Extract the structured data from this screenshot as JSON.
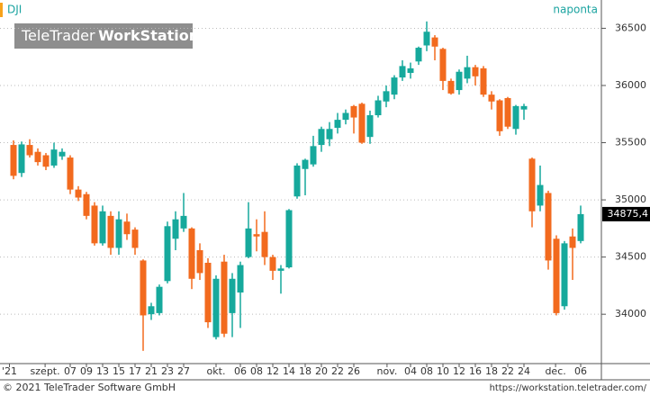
{
  "chart_data": {
    "type": "candlestick",
    "title": "DJI",
    "period": "naponta",
    "watermark": [
      "TeleTrader",
      "WorkStation"
    ],
    "up_color": "#16a99c",
    "down_color": "#f26a1e",
    "open": [
      35480,
      35235,
      35480,
      35420,
      35390,
      35300,
      35380,
      35370,
      35090,
      35050,
      34950,
      34620,
      34860,
      34580,
      34810,
      34740,
      34470,
      34000,
      34010,
      34290,
      34660,
      34750,
      34750,
      34560,
      34450,
      33800,
      34460,
      34010,
      34190,
      34500,
      34700,
      34720,
      34500,
      34380,
      34410,
      35030,
      35270,
      35310,
      35480,
      35530,
      35630,
      35700,
      35820,
      35840,
      35550,
      35740,
      35860,
      35920,
      36070,
      36110,
      36210,
      36350,
      36420,
      36320,
      36040,
      35960,
      36060,
      36160,
      36150,
      35920,
      35870,
      35890,
      35620,
      35790,
      35360,
      34950,
      35060,
      34660,
      34070,
      34680,
      34640
    ],
    "high": [
      35520,
      35510,
      35530,
      35450,
      35410,
      35500,
      35450,
      35390,
      35120,
      35070,
      34980,
      34950,
      34900,
      34900,
      34880,
      34760,
      34480,
      34100,
      34260,
      34810,
      34900,
      35060,
      34760,
      34620,
      34490,
      34340,
      34520,
      34360,
      34460,
      34980,
      34830,
      34900,
      34520,
      34430,
      34920,
      35320,
      35360,
      35560,
      35640,
      35680,
      35760,
      35790,
      35830,
      35850,
      35780,
      35910,
      36000,
      36090,
      36220,
      36200,
      36340,
      36560,
      36440,
      36330,
      36060,
      36140,
      36260,
      36180,
      36170,
      35950,
      35880,
      35900,
      35830,
      35840,
      35370,
      35300,
      35080,
      34690,
      34640,
      34750,
      34950
    ],
    "low": [
      35180,
      35200,
      35370,
      35300,
      35260,
      35280,
      35350,
      35050,
      34990,
      34830,
      34600,
      34600,
      34520,
      34520,
      34650,
      34520,
      33680,
      33950,
      33990,
      34270,
      34560,
      34720,
      34220,
      34300,
      33880,
      33780,
      33800,
      33800,
      33880,
      34490,
      34550,
      34430,
      34300,
      34180,
      34400,
      35010,
      35040,
      35290,
      35420,
      35470,
      35580,
      35660,
      35580,
      35490,
      35490,
      35720,
      35810,
      35880,
      36040,
      36060,
      36180,
      36300,
      36220,
      35960,
      35920,
      35920,
      36020,
      36000,
      35900,
      35790,
      35560,
      35620,
      35570,
      35700,
      34760,
      34900,
      34390,
      33990,
      34040,
      34300,
      34620
    ],
    "close": [
      35210,
      35485,
      35390,
      35330,
      35290,
      35440,
      35420,
      35090,
      35020,
      34860,
      34620,
      34900,
      34580,
      34830,
      34700,
      34580,
      33990,
      34070,
      34240,
      34770,
      34830,
      34860,
      34310,
      34360,
      33930,
      34310,
      33830,
      34310,
      34430,
      34750,
      34680,
      34500,
      34380,
      34400,
      34910,
      35300,
      35350,
      35470,
      35620,
      35620,
      35700,
      35760,
      35720,
      35500,
      35740,
      35870,
      35950,
      36070,
      36170,
      36150,
      36330,
      36470,
      36340,
      36040,
      35930,
      36120,
      36160,
      36080,
      35920,
      35860,
      35600,
      35640,
      35820,
      35820,
      34900,
      35130,
      34470,
      34010,
      34620,
      34580,
      34875.4
    ],
    "last_price": {
      "value": 34875.4,
      "label": "34875,4"
    },
    "ylim": [
      33600,
      36590
    ],
    "yticks": [
      34000,
      34500,
      35000,
      35500,
      36000,
      36500
    ],
    "grid": true,
    "xticks": [
      {
        "value": -0.5,
        "label": "'21"
      },
      {
        "value": 3.9,
        "label": "szept."
      },
      {
        "value": 7,
        "label": "07"
      },
      {
        "value": 9,
        "label": "09"
      },
      {
        "value": 11,
        "label": "13"
      },
      {
        "value": 13,
        "label": "15"
      },
      {
        "value": 15,
        "label": "17"
      },
      {
        "value": 17,
        "label": "21"
      },
      {
        "value": 19,
        "label": "23"
      },
      {
        "value": 21,
        "label": "27"
      },
      {
        "value": 25,
        "label": "okt."
      },
      {
        "value": 28,
        "label": "06"
      },
      {
        "value": 30,
        "label": "08"
      },
      {
        "value": 32,
        "label": "12"
      },
      {
        "value": 34,
        "label": "14"
      },
      {
        "value": 36,
        "label": "18"
      },
      {
        "value": 38,
        "label": "20"
      },
      {
        "value": 40,
        "label": "22"
      },
      {
        "value": 42,
        "label": "26"
      },
      {
        "value": 46.1,
        "label": "nov."
      },
      {
        "value": 49,
        "label": "04"
      },
      {
        "value": 51,
        "label": "08"
      },
      {
        "value": 53,
        "label": "10"
      },
      {
        "value": 55,
        "label": "12"
      },
      {
        "value": 57,
        "label": "16"
      },
      {
        "value": 59,
        "label": "18"
      },
      {
        "value": 61,
        "label": "22"
      },
      {
        "value": 63,
        "label": "24"
      },
      {
        "value": 66.9,
        "label": "dec."
      },
      {
        "value": 70,
        "label": "06"
      }
    ]
  },
  "footer": {
    "copyright": "© 2021 TeleTrader Software GmbH",
    "url": "https://workstation.teletrader.com/"
  }
}
